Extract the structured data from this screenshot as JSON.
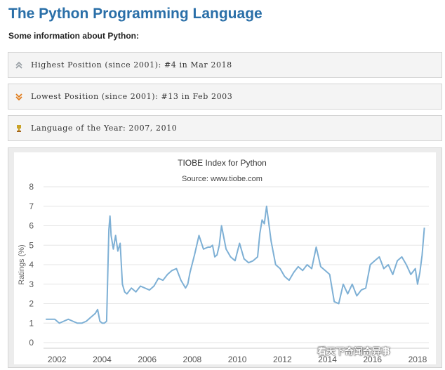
{
  "header": {
    "title": "The Python Programming Language",
    "subtitle": "Some information about Python:"
  },
  "info": [
    {
      "icon": "double-chevron-up-icon",
      "text": "Highest Position (since 2001): #4 in Mar 2018",
      "color": "#9aa0a6"
    },
    {
      "icon": "double-chevron-down-icon",
      "text": "Lowest Position (since 2001): #13 in Feb 2003",
      "color": "#e07b1a"
    },
    {
      "icon": "trophy-icon",
      "text": "Language of the Year: 2007, 2010",
      "color": "#c9a227"
    }
  ],
  "watermark": "看天下奇闻奇异事",
  "chart_data": {
    "type": "line",
    "title": "TIOBE Index for Python",
    "subtitle": "Source: www.tiobe.com",
    "ylabel": "Ratings (%)",
    "xlabel": "",
    "ylim": [
      0,
      8
    ],
    "xlim": [
      2001.4,
      2018.5
    ],
    "yticks": [
      "0",
      "1",
      "2",
      "3",
      "4",
      "5",
      "6",
      "7",
      "8"
    ],
    "xticks": [
      "2002",
      "2004",
      "2006",
      "2008",
      "2010",
      "2012",
      "2014",
      "2016",
      "2018"
    ],
    "grid": true,
    "legend": "none",
    "color": "#7eb0d5",
    "series": [
      {
        "x": [
          2001.5,
          2001.7,
          2001.9,
          2002.1,
          2002.3,
          2002.5,
          2002.7,
          2002.9,
          2003.1,
          2003.3,
          2003.5,
          2003.7,
          2003.8,
          2003.9,
          2004.0,
          2004.1,
          2004.2,
          2004.3,
          2004.35,
          2004.4,
          2004.5,
          2004.6,
          2004.7,
          2004.8,
          2004.9,
          2005.0,
          2005.1,
          2005.3,
          2005.5,
          2005.7,
          2005.9,
          2006.1,
          2006.3,
          2006.5,
          2006.7,
          2006.9,
          2007.1,
          2007.3,
          2007.5,
          2007.7,
          2007.8,
          2007.9,
          2008.1,
          2008.3,
          2008.5,
          2008.7,
          2008.8,
          2008.9,
          2009.0,
          2009.1,
          2009.2,
          2009.3,
          2009.5,
          2009.7,
          2009.9,
          2010.1,
          2010.3,
          2010.5,
          2010.7,
          2010.9,
          2011.0,
          2011.1,
          2011.2,
          2011.3,
          2011.5,
          2011.7,
          2011.9,
          2012.1,
          2012.3,
          2012.5,
          2012.7,
          2012.9,
          2013.1,
          2013.3,
          2013.5,
          2013.7,
          2013.9,
          2014.1,
          2014.3,
          2014.5,
          2014.7,
          2014.9,
          2015.1,
          2015.3,
          2015.5,
          2015.7,
          2015.9,
          2016.1,
          2016.3,
          2016.5,
          2016.7,
          2016.9,
          2017.1,
          2017.3,
          2017.5,
          2017.7,
          2017.9,
          2018.0,
          2018.1,
          2018.2,
          2018.3
        ],
        "y": [
          1.2,
          1.2,
          1.2,
          1.0,
          1.1,
          1.2,
          1.1,
          1.0,
          1.0,
          1.1,
          1.3,
          1.5,
          1.7,
          1.1,
          1.0,
          1.0,
          1.1,
          5.8,
          6.5,
          5.5,
          4.8,
          5.5,
          4.7,
          5.1,
          3.0,
          2.6,
          2.5,
          2.8,
          2.6,
          2.9,
          2.8,
          2.7,
          2.9,
          3.3,
          3.2,
          3.5,
          3.7,
          3.8,
          3.2,
          2.8,
          3.0,
          3.6,
          4.5,
          5.5,
          4.8,
          4.9,
          4.9,
          5.0,
          4.4,
          4.5,
          5.0,
          6.0,
          4.8,
          4.4,
          4.2,
          5.1,
          4.3,
          4.1,
          4.2,
          4.4,
          5.6,
          6.3,
          6.1,
          7.0,
          5.2,
          4.0,
          3.8,
          3.4,
          3.2,
          3.6,
          3.9,
          3.7,
          4.0,
          3.8,
          4.9,
          3.9,
          3.7,
          3.5,
          2.1,
          2.0,
          3.0,
          2.5,
          3.0,
          2.4,
          2.7,
          2.8,
          4.0,
          4.2,
          4.4,
          3.8,
          4.0,
          3.5,
          4.2,
          4.4,
          4.0,
          3.5,
          3.8,
          3.0,
          3.6,
          4.5,
          5.9
        ]
      }
    ]
  }
}
